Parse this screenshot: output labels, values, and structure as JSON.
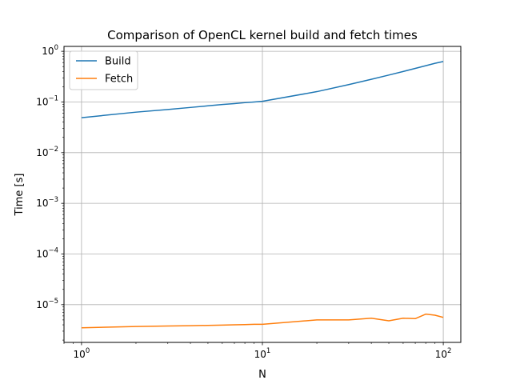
{
  "chart_data": {
    "type": "line",
    "title": "Comparison of OpenCL kernel build and fetch times",
    "xlabel": "N",
    "ylabel": "Time [s]",
    "xscale": "log",
    "yscale": "log",
    "xlim": [
      0.8,
      125
    ],
    "ylim": [
      1.8e-06,
      1.25
    ],
    "grid": true,
    "legend_position": "top-left",
    "x_major_ticks": [
      {
        "value": 1,
        "base": "10",
        "exp": "0"
      },
      {
        "value": 10,
        "base": "10",
        "exp": "1"
      },
      {
        "value": 100,
        "base": "10",
        "exp": "2"
      }
    ],
    "y_major_ticks": [
      {
        "value": 1e-05,
        "base": "10",
        "exp": "−5"
      },
      {
        "value": 0.0001,
        "base": "10",
        "exp": "−4"
      },
      {
        "value": 0.001,
        "base": "10",
        "exp": "−3"
      },
      {
        "value": 0.01,
        "base": "10",
        "exp": "−2"
      },
      {
        "value": 0.1,
        "base": "10",
        "exp": "−1"
      },
      {
        "value": 1,
        "base": "10",
        "exp": "0"
      }
    ],
    "series": [
      {
        "name": "Build",
        "color": "#1f77b4",
        "x": [
          1,
          2,
          3,
          4,
          5,
          6,
          7,
          8,
          9,
          10,
          20,
          30,
          40,
          50,
          60,
          70,
          80,
          90,
          100
        ],
        "y": [
          0.049,
          0.063,
          0.071,
          0.078,
          0.084,
          0.089,
          0.093,
          0.097,
          0.1,
          0.103,
          0.16,
          0.22,
          0.28,
          0.34,
          0.4,
          0.46,
          0.52,
          0.58,
          0.63
        ]
      },
      {
        "name": "Fetch",
        "color": "#ff7f0e",
        "x": [
          1,
          2,
          3,
          4,
          5,
          6,
          7,
          8,
          9,
          10,
          20,
          30,
          40,
          50,
          60,
          70,
          80,
          90,
          100
        ],
        "y": [
          3.5e-06,
          3.7e-06,
          3.8e-06,
          3.85e-06,
          3.9e-06,
          3.95e-06,
          4e-06,
          4.05e-06,
          4.1e-06,
          4.1e-06,
          5e-06,
          5e-06,
          5.4e-06,
          4.8e-06,
          5.4e-06,
          5.3e-06,
          6.5e-06,
          6.2e-06,
          5.6e-06
        ]
      }
    ]
  }
}
